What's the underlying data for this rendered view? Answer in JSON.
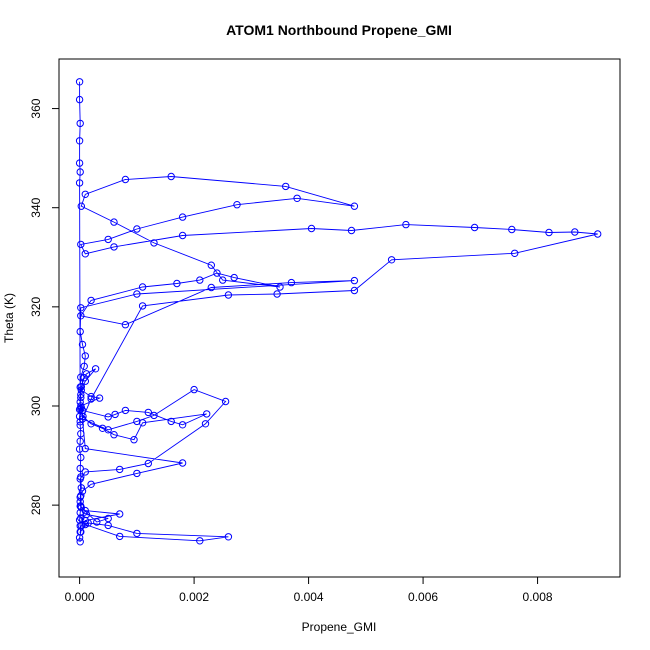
{
  "chart_data": {
    "type": "scatter",
    "title": "ATOM1 Northbound Propene_GMI",
    "xlabel": "Propene_GMI",
    "ylabel": "Theta (K)",
    "xlim": [
      -0.00036,
      0.00944
    ],
    "ylim": [
      265.5,
      370
    ],
    "x_ticks": [
      {
        "value": 0.0,
        "label": "0.000"
      },
      {
        "value": 0.002,
        "label": "0.002"
      },
      {
        "value": 0.004,
        "label": "0.004"
      },
      {
        "value": 0.006,
        "label": "0.006"
      },
      {
        "value": 0.008,
        "label": "0.008"
      }
    ],
    "y_ticks": [
      {
        "value": 280,
        "label": "280"
      },
      {
        "value": 300,
        "label": "300"
      },
      {
        "value": 320,
        "label": "320"
      },
      {
        "value": 340,
        "label": "340"
      },
      {
        "value": 360,
        "label": "360"
      }
    ],
    "grid": false,
    "legend": "none",
    "colors": {
      "series": "#0000ff",
      "axis": "#000000",
      "background": "#ffffff"
    },
    "series": [
      {
        "style": "points-and-lines",
        "x": [
          1e-05,
          0.0,
          2e-05,
          1e-05,
          0.0,
          1e-05,
          2e-05,
          1e-05,
          3e-05,
          2e-05,
          1e-05,
          2e-05,
          0.0,
          1e-05,
          2e-05,
          1e-05,
          0.0,
          2e-05,
          1e-05,
          2e-05,
          3e-05,
          8e-05,
          0.00012,
          0.00028,
          0.0001,
          3e-05,
          0.0002,
          0.00035,
          2e-05,
          5e-05,
          0.0005,
          0.00062,
          0.0008,
          0.0012,
          0.0016,
          0.0018,
          0.00222,
          0.0011,
          0.00095,
          0.0006,
          0.0004,
          0.0002,
          6e-05,
          3e-05,
          0.0001,
          0.0018,
          0.001,
          0.0002,
          5e-05,
          2e-05,
          1e-05,
          1e-05,
          0.0001,
          0.0007,
          0.0001,
          3e-05,
          1e-05,
          0.00015,
          0.0005,
          0.001,
          0.0026,
          0.0021,
          0.0007,
          0.0001,
          2e-05,
          0.00012,
          0.0005,
          0.0003,
          3e-05,
          1e-05,
          0.0001,
          0.0007,
          0.0012,
          0.0022,
          0.00255,
          0.002,
          0.0013,
          0.001,
          0.0005,
          5e-05,
          0.0002,
          0.0011,
          0.0026,
          0.00345,
          0.0048,
          0.00545,
          0.0076,
          0.00905,
          0.00865,
          0.0082,
          0.00755,
          0.0069,
          0.0057,
          0.00475,
          0.00405,
          0.0018,
          0.0006,
          0.0001,
          2e-05,
          0.0005,
          0.001,
          0.0018,
          0.00275,
          0.0038,
          0.0048,
          0.0036,
          0.0016,
          0.0008,
          0.0001,
          3e-05,
          0.0006,
          0.0013,
          0.0023,
          0.0025,
          0.0035,
          0.0027,
          0.0024,
          0.0021,
          0.0017,
          0.0011,
          0.0002,
          2e-05,
          0.0008,
          0.0023,
          0.0037,
          0.0048,
          0.001,
          2e-05,
          1e-05,
          5e-05,
          0.0001,
          8e-05,
          2e-05,
          1e-05,
          2e-05,
          0.0,
          1e-05,
          0.0,
          1e-05,
          0.0,
          0.0,
          1e-05,
          0.0,
          0.0
        ],
        "y": [
          272.6,
          273.4,
          274.6,
          275.8,
          277.0,
          278.5,
          279.8,
          281.6,
          283.5,
          285.7,
          287.4,
          289.6,
          291.3,
          292.9,
          294.4,
          296.1,
          297.9,
          299.4,
          300.8,
          302.3,
          303.9,
          305.7,
          306.5,
          307.5,
          305.0,
          303.2,
          301.9,
          301.6,
          300.0,
          299.1,
          297.8,
          298.3,
          299.1,
          298.7,
          296.9,
          296.2,
          298.4,
          296.6,
          293.2,
          294.2,
          295.5,
          296.4,
          297.9,
          299.7,
          291.4,
          288.5,
          286.4,
          284.2,
          282.8,
          281.9,
          280.7,
          279.8,
          278.9,
          278.2,
          276.9,
          275.9,
          274.6,
          276.4,
          275.9,
          274.3,
          273.6,
          272.8,
          273.7,
          276.1,
          277.4,
          278.1,
          277.3,
          276.6,
          279.5,
          285.3,
          286.7,
          287.2,
          288.4,
          296.4,
          300.9,
          303.3,
          298.1,
          296.9,
          295.2,
          297.4,
          301.4,
          320.2,
          322.4,
          322.6,
          323.3,
          329.5,
          330.8,
          334.7,
          335.1,
          335.0,
          335.6,
          336.0,
          336.6,
          335.4,
          335.8,
          334.4,
          332.1,
          330.7,
          332.6,
          333.6,
          335.7,
          338.1,
          340.6,
          341.9,
          340.3,
          344.3,
          346.3,
          345.7,
          342.7,
          340.3,
          337.1,
          332.9,
          328.4,
          325.4,
          324.0,
          325.9,
          326.8,
          325.4,
          324.7,
          324.0,
          321.3,
          318.2,
          316.4,
          323.9,
          324.9,
          325.3,
          322.6,
          319.8,
          315.0,
          312.4,
          310.1,
          308.0,
          305.8,
          303.8,
          301.7,
          299.3,
          296.8,
          345.0,
          347.2,
          349.0,
          353.5,
          357.0,
          361.8,
          365.4
        ]
      }
    ]
  }
}
